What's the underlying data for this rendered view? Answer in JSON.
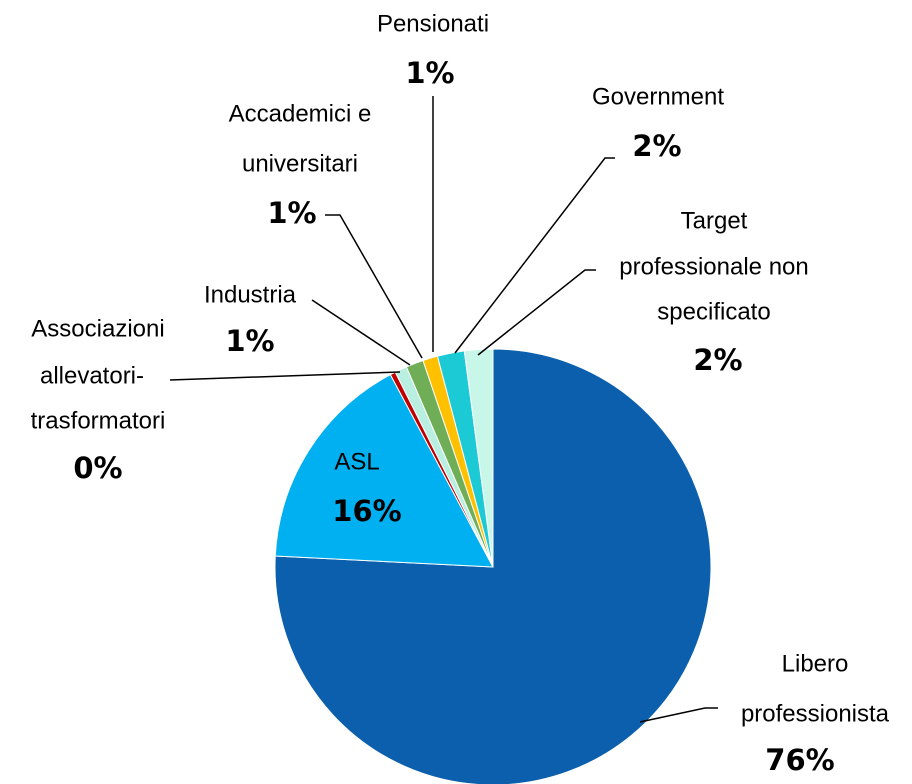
{
  "chart_data": {
    "type": "pie",
    "categories": [
      [
        "Libero",
        "professionista"
      ],
      [
        "ASL"
      ],
      [
        "Associazioni",
        "allevatori-",
        "trasformatori"
      ],
      [
        "Industria"
      ],
      [
        "Accademici e",
        "universitari"
      ],
      [
        "Pensionati"
      ],
      [
        "Government"
      ],
      [
        "Target",
        "professionale non",
        "specificato"
      ]
    ],
    "values": [
      75.8,
      16.4,
      0.4,
      0.9,
      1.3,
      1.1,
      2.0,
      2.1
    ],
    "value_labels": [
      "76%",
      "16%",
      "0%",
      "1%",
      "1%",
      "1%",
      "2%",
      "2%"
    ],
    "colors": [
      "#0b5fad",
      "#00b0f0",
      "#c00000",
      "#b8efe0",
      "#6fad57",
      "#ffc000",
      "#1ccad6",
      "#c8f7ea"
    ]
  }
}
